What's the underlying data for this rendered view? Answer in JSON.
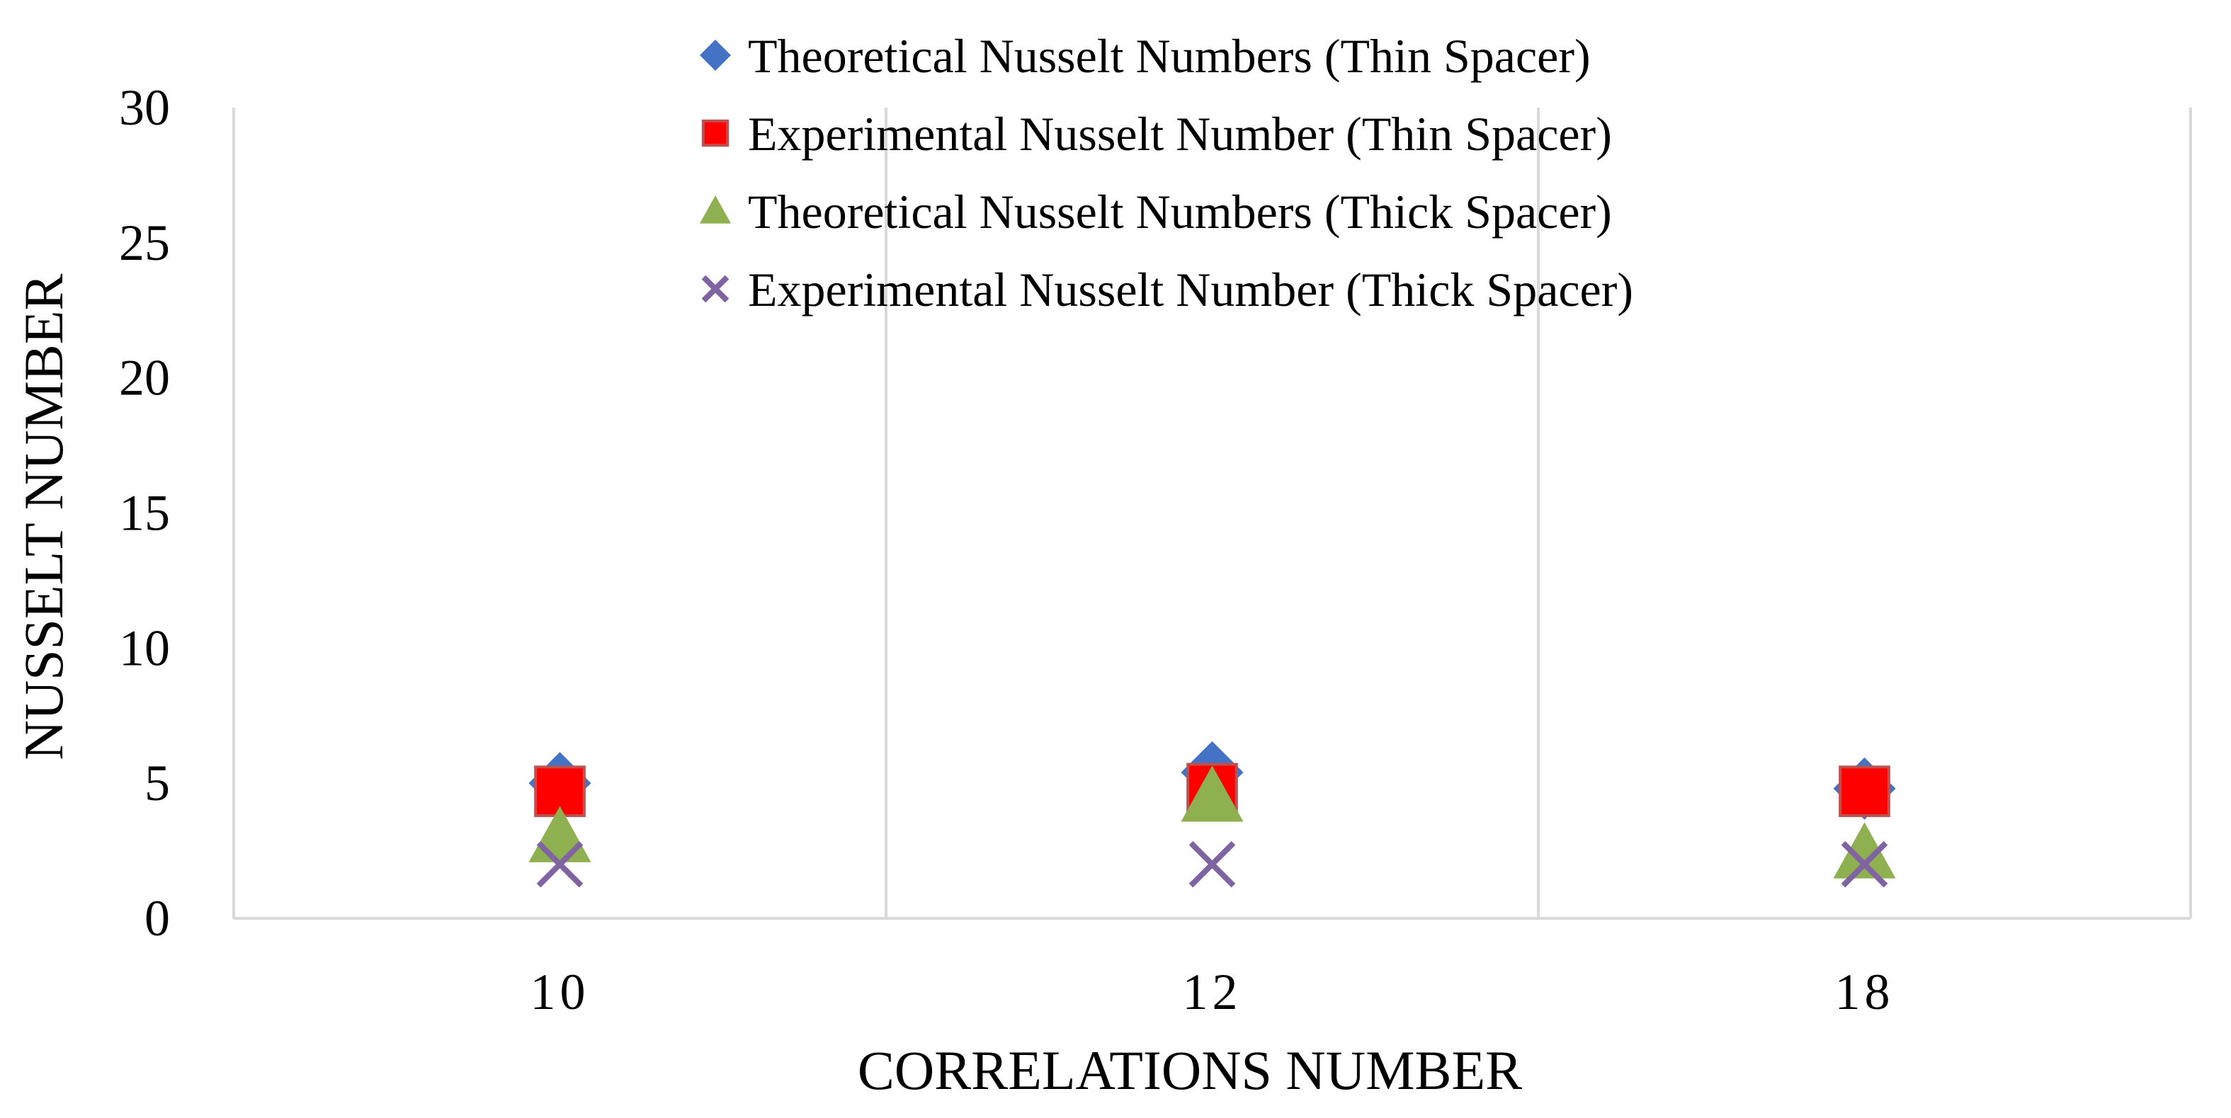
{
  "chart_data": {
    "type": "scatter",
    "title": "",
    "xlabel": "CORRELATIONS NUMBER",
    "ylabel": "NUSSELT NUMBER",
    "categories": [
      "10",
      "12",
      "18"
    ],
    "ylim": [
      0,
      30
    ],
    "yticks": [
      "0",
      "5",
      "10",
      "15",
      "20",
      "25",
      "30"
    ],
    "grid": "vertical",
    "legend_position": "top-center",
    "series": [
      {
        "name": "Theoretical Nusselt Numbers (Thin Spacer)",
        "marker": "diamond",
        "color": "#4472C4",
        "values": [
          5.0,
          5.4,
          4.8
        ]
      },
      {
        "name": "Experimental Nusselt Number (Thin Spacer)",
        "marker": "square",
        "color": "#FF0000",
        "values": [
          4.7,
          4.8,
          4.7
        ]
      },
      {
        "name": "Theoretical Nusselt Numbers (Thick Spacer)",
        "marker": "triangle",
        "color": "#8FB050",
        "values": [
          3.0,
          4.5,
          2.4
        ]
      },
      {
        "name": "Experimental Nusselt Number (Thick Spacer)",
        "marker": "x",
        "color": "#8064A2",
        "values": [
          2.0,
          2.0,
          2.0
        ]
      }
    ]
  }
}
